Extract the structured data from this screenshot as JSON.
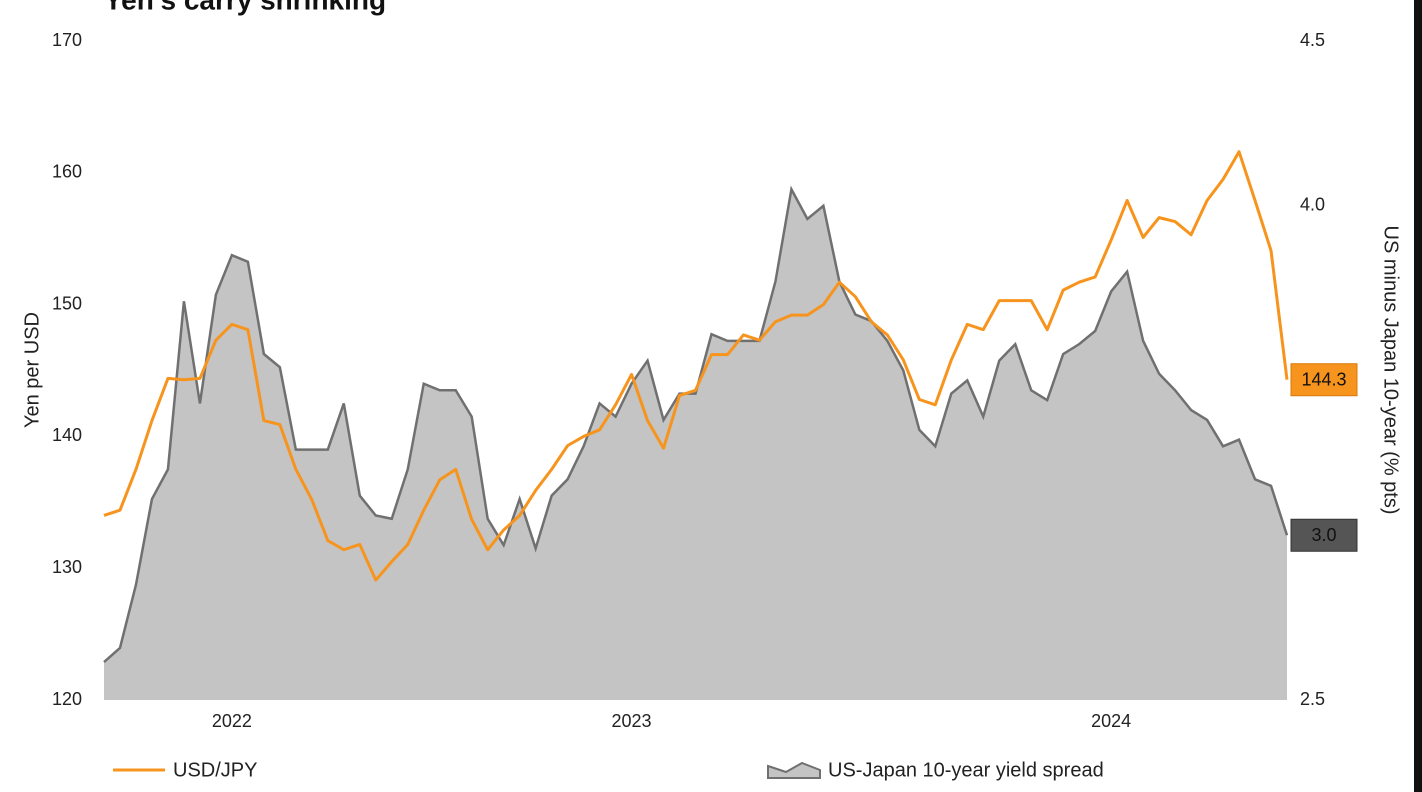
{
  "chart_data": {
    "type": "line-area",
    "title": "Yen's carry shrinking",
    "ylabel": "Yen per USD",
    "y2label": "US minus Japan 10-year (% pts)",
    "categories": [
      null,
      null,
      null,
      null,
      null,
      null,
      null,
      null,
      "2022",
      null,
      null,
      null,
      null,
      null,
      null,
      null,
      null,
      null,
      null,
      null,
      null,
      null,
      null,
      null,
      null,
      null,
      null,
      null,
      null,
      null,
      null,
      null,
      null,
      "2023",
      null,
      null,
      null,
      null,
      null,
      null,
      null,
      null,
      null,
      null,
      null,
      null,
      null,
      null,
      null,
      null,
      null,
      null,
      null,
      null,
      null,
      null,
      null,
      null,
      null,
      null,
      null,
      null,
      null,
      "2024",
      null,
      null,
      null,
      null,
      null,
      null,
      null,
      null,
      null,
      null,
      null
    ],
    "ylim": [
      120,
      170
    ],
    "yticks": [
      120,
      130,
      140,
      150,
      160,
      170
    ],
    "y2lim": [
      2.5,
      4.5
    ],
    "y2ticks": [
      2.5,
      {
        "value": 4.0,
        "label": "4.0"
      },
      4.5
    ],
    "series": [
      {
        "name": "USD/JPY",
        "color": "#f7941d",
        "type": "line",
        "end_label": "144.3",
        "values": [
          134.0,
          134.4,
          137.5,
          141.2,
          144.4,
          144.3,
          144.4,
          147.3,
          148.5,
          148.1,
          141.2,
          140.9,
          137.5,
          135.2,
          132.1,
          131.4,
          131.8,
          129.1,
          130.5,
          131.8,
          134.4,
          136.7,
          137.5,
          133.7,
          131.4,
          132.9,
          134.0,
          135.9,
          137.5,
          139.3,
          140.0,
          140.5,
          142.4,
          144.7,
          141.2,
          139.1,
          143.1,
          143.5,
          146.2,
          146.2,
          147.7,
          147.3,
          148.7,
          149.2,
          149.2,
          150.0,
          151.7,
          150.6,
          148.7,
          147.7,
          145.8,
          142.8,
          142.4,
          145.8,
          148.5,
          148.1,
          150.3,
          150.3,
          150.3,
          148.1,
          151.1,
          151.7,
          152.1,
          154.9,
          157.9,
          155.1,
          156.6,
          156.3,
          155.3,
          157.9,
          159.5,
          161.6,
          157.9,
          154.1,
          144.3
        ]
      },
      {
        "name": "US-Japan 10-year yield spread",
        "color": "#707070",
        "fill": "#c4c4c4",
        "type": "area",
        "axis": "y2",
        "end_label": "3.0",
        "values": [
          2.615,
          2.658,
          2.85,
          3.11,
          3.2,
          3.71,
          3.4,
          3.73,
          3.85,
          3.83,
          3.55,
          3.51,
          3.26,
          3.26,
          3.26,
          3.4,
          3.12,
          3.06,
          3.05,
          3.2,
          3.46,
          3.44,
          3.44,
          3.36,
          3.05,
          2.97,
          3.11,
          2.96,
          3.12,
          3.17,
          3.27,
          3.4,
          3.36,
          3.46,
          3.53,
          3.35,
          3.43,
          3.43,
          3.61,
          3.59,
          3.59,
          3.59,
          3.77,
          4.05,
          3.96,
          4.0,
          3.77,
          3.67,
          3.65,
          3.59,
          3.5,
          3.32,
          3.27,
          3.43,
          3.47,
          3.36,
          3.53,
          3.58,
          3.44,
          3.41,
          3.55,
          3.58,
          3.62,
          3.74,
          3.8,
          3.59,
          3.49,
          3.44,
          3.38,
          3.35,
          3.27,
          3.29,
          3.17,
          3.15,
          3.0
        ]
      }
    ]
  }
}
